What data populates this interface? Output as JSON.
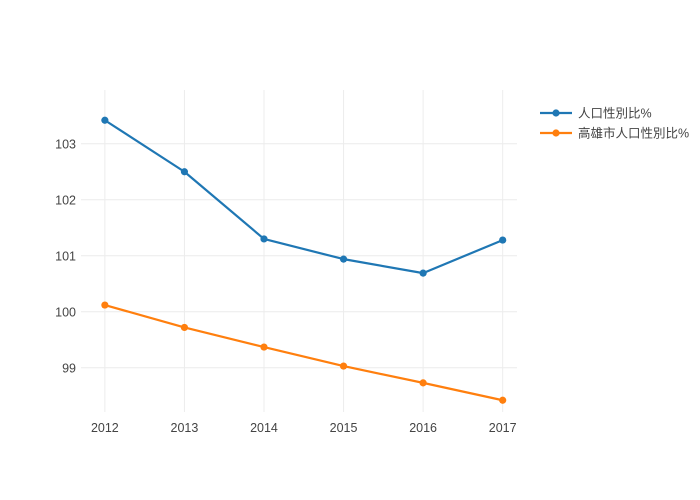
{
  "chart_data": {
    "type": "line",
    "mode": "lines+markers",
    "title": "",
    "xlabel": "",
    "ylabel": "",
    "x": [
      2012,
      2013,
      2014,
      2015,
      2016,
      2017
    ],
    "x_tick_labels": [
      "2012",
      "2013",
      "2014",
      "2015",
      "2016",
      "2017"
    ],
    "y_ticks": [
      99,
      100,
      101,
      102,
      103
    ],
    "y_tick_labels": [
      "99",
      "100",
      "101",
      "102",
      "103"
    ],
    "xlim": [
      2011.7,
      2017.18
    ],
    "ylim": [
      98.21,
      103.96
    ],
    "grid": true,
    "legend_position": "top-right",
    "series": [
      {
        "name": "人口性別比%",
        "color": "#1f77b4",
        "values": [
          103.42,
          102.5,
          101.3,
          100.94,
          100.69,
          101.28
        ]
      },
      {
        "name": "高雄市人口性別比%",
        "color": "#ff7f0e",
        "values": [
          100.12,
          99.72,
          99.37,
          99.03,
          98.73,
          98.42
        ]
      }
    ]
  },
  "style": {
    "background_color": "#ffffff",
    "grid_color": "#ececec",
    "tick_text_color": "#444444",
    "legend_text_color": "#444444"
  }
}
